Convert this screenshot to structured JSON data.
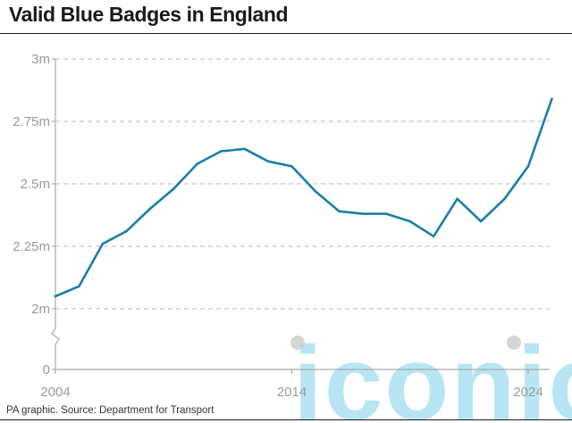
{
  "title": "Valid Blue Badges in England",
  "source": "PA graphic. Source: Department for Transport",
  "watermark": "iconic",
  "colors": {
    "line": "#1a7fa8",
    "axis": "#aaaaaa",
    "grid": "#bbbbbb",
    "tick_text": "#999999",
    "watermark": "#7fd0ea"
  },
  "chart_data": {
    "type": "line",
    "title": "Valid Blue Badges in England",
    "xlabel": "",
    "ylabel": "",
    "x": [
      2004,
      2005,
      2006,
      2007,
      2008,
      2009,
      2010,
      2011,
      2012,
      2013,
      2014,
      2015,
      2016,
      2017,
      2018,
      2019,
      2020,
      2021,
      2022,
      2023,
      2024,
      2025
    ],
    "series": [
      {
        "values": [
          2.05,
          2.09,
          2.26,
          2.31,
          2.4,
          2.48,
          2.58,
          2.63,
          2.64,
          2.59,
          2.57,
          2.47,
          2.39,
          2.38,
          2.38,
          2.35,
          2.29,
          2.44,
          2.35,
          2.44,
          2.57,
          2.84
        ]
      }
    ],
    "x_ticks": [
      "2004",
      "2014",
      "2024"
    ],
    "y_ticks": [
      "0",
      "2m",
      "2.25m",
      "2.5m",
      "2.75m",
      "3m"
    ],
    "y_axis_broken": true,
    "ylim": [
      2.0,
      3.0
    ],
    "grid": true
  }
}
